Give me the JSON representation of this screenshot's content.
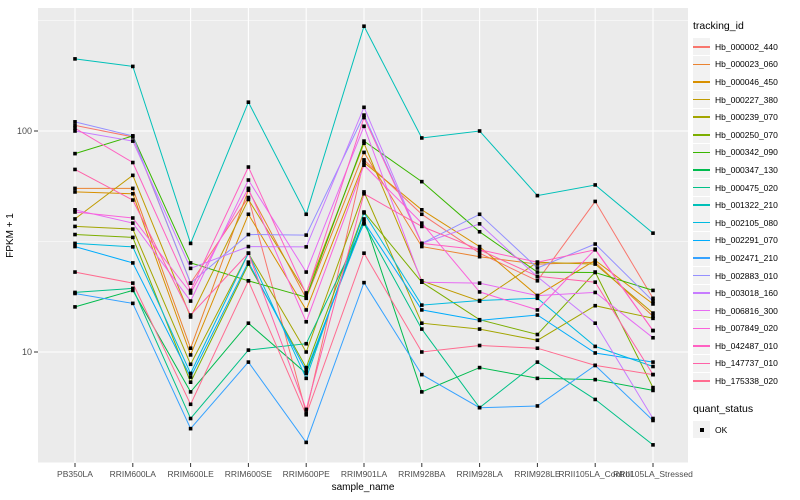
{
  "figure": {
    "background": "#FFFFFF",
    "panel_background": "#EBEBEB",
    "grid_color": "#FFFFFF",
    "tick_color": "#333333",
    "tick_label_color": "#4D4D4D",
    "axis_title_color": "#000000",
    "point_color": "#000000",
    "legend_key_background": "#F2F2F2"
  },
  "chart_data": {
    "type": "line",
    "title": "",
    "xlabel": "sample_name",
    "ylabel": "FPKM + 1",
    "y_scale": "log10",
    "y_ticks": [
      10,
      100
    ],
    "y_minor_ticks": [
      3.162,
      31.623,
      316.228
    ],
    "ylim": [
      3.1,
      360
    ],
    "grid": true,
    "point_shape": "square",
    "legend_position": "right",
    "categories": [
      "PB350LA",
      "RRIM600LA",
      "RRIM600LE",
      "RRIM600SE",
      "RRIM600PE",
      "RRIM901LA",
      "RRIM928BA",
      "RRIM928LA",
      "RRIM928LE",
      "RRII105LA_Control",
      "RRII105LA_Stressed"
    ],
    "series": [
      {
        "name": "Hb_000002_440",
        "color": "#F8766D",
        "values": [
          106,
          94,
          20.5,
          50,
          5.3,
          74,
          42,
          28,
          21,
          48,
          17.5
        ]
      },
      {
        "name": "Hb_000023_060",
        "color": "#EA8331",
        "values": [
          55,
          55,
          10.4,
          54,
          17.5,
          80,
          30,
          27,
          25,
          25.5,
          14.5
        ]
      },
      {
        "name": "Hb_000046_450",
        "color": "#D89000",
        "values": [
          53,
          52,
          9.7,
          42,
          15.5,
          72,
          44,
          30,
          18,
          26,
          16.5
        ]
      },
      {
        "name": "Hb_000227_380",
        "color": "#C09B00",
        "values": [
          40,
          63,
          14.4,
          49,
          18.5,
          88,
          21,
          17,
          25.5,
          25,
          15
        ]
      },
      {
        "name": "Hb_000239_070",
        "color": "#A3A500",
        "values": [
          37,
          36,
          8.8,
          28,
          10,
          53,
          13.5,
          12.7,
          11.3,
          16.2,
          14.2
        ]
      },
      {
        "name": "Hb_000250_070",
        "color": "#7CAE00",
        "values": [
          34,
          33,
          7.3,
          25,
          8.5,
          43,
          20.7,
          14,
          12,
          23,
          6.9
        ]
      },
      {
        "name": "Hb_000342_090",
        "color": "#39B600",
        "values": [
          79,
          95,
          25.3,
          21,
          17.7,
          90,
          59,
          35,
          23,
          22.9,
          19
        ]
      },
      {
        "name": "Hb_000347_130",
        "color": "#00BB4E",
        "values": [
          16,
          19,
          6.6,
          13.5,
          8,
          40,
          6.6,
          8.5,
          7.6,
          7.5,
          6.7
        ]
      },
      {
        "name": "Hb_000475_020",
        "color": "#00C087",
        "values": [
          18.6,
          19.4,
          5,
          10.2,
          10.9,
          38,
          12.7,
          5.6,
          9,
          6.1,
          3.8
        ]
      },
      {
        "name": "Hb_001322_210",
        "color": "#00C0B8",
        "values": [
          212,
          196,
          31,
          135,
          42,
          298,
          93,
          100,
          51,
          57,
          34.5
        ]
      },
      {
        "name": "Hb_002105_080",
        "color": "#00BAE0",
        "values": [
          31,
          29.9,
          8,
          28,
          7.6,
          42.6,
          16.3,
          17.1,
          17.5,
          10.6,
          8.6
        ]
      },
      {
        "name": "Hb_002291_070",
        "color": "#00ACFC",
        "values": [
          30,
          25.3,
          7.7,
          25.5,
          8.2,
          38.7,
          15.5,
          13.9,
          14.7,
          9.9,
          9
        ]
      },
      {
        "name": "Hb_002471_210",
        "color": "#35A2FF",
        "values": [
          18.4,
          16.6,
          4.5,
          9,
          3.9,
          20.6,
          7.9,
          5.6,
          5.7,
          8.7,
          4.9
        ]
      },
      {
        "name": "Hb_002883_010",
        "color": "#9590FF",
        "values": [
          110,
          95,
          20.5,
          34,
          33.8,
          118,
          31,
          42,
          24,
          30.8,
          17
        ]
      },
      {
        "name": "Hb_003018_160",
        "color": "#C77CFF",
        "values": [
          100,
          90,
          23.9,
          30,
          29.9,
          128,
          31,
          38,
          21.9,
          13.5,
          5
        ]
      },
      {
        "name": "Hb_006816_300",
        "color": "#E76BF3",
        "values": [
          44,
          38.3,
          17,
          60,
          23,
          105,
          20.7,
          20.5,
          18,
          18.6,
          11.6
        ]
      },
      {
        "name": "Hb_007849_020",
        "color": "#FA62DB",
        "values": [
          43,
          40.4,
          18.5,
          55,
          13.7,
          70,
          38.3,
          18.7,
          15.5,
          29.2,
          12.5
        ]
      },
      {
        "name": "Hb_042487_010",
        "color": "#FF61C2",
        "values": [
          103,
          72,
          19,
          68.7,
          18.3,
          115,
          31,
          29,
          25.5,
          29,
          12.5
        ]
      },
      {
        "name": "Hb_147737_010",
        "color": "#FF62A8",
        "values": [
          67,
          48.7,
          14.7,
          28,
          5.5,
          52,
          37,
          29,
          22,
          20.7,
          7.9
        ]
      },
      {
        "name": "Hb_175338_020",
        "color": "#FF6C90",
        "values": [
          23,
          20.5,
          5.8,
          21,
          5.2,
          28,
          10,
          10.7,
          10.4,
          8.7,
          7.9
        ]
      }
    ],
    "legend": {
      "color_title": "tracking_id",
      "shape_title": "quant_status",
      "shape_entries": [
        {
          "label": "OK"
        }
      ]
    }
  }
}
